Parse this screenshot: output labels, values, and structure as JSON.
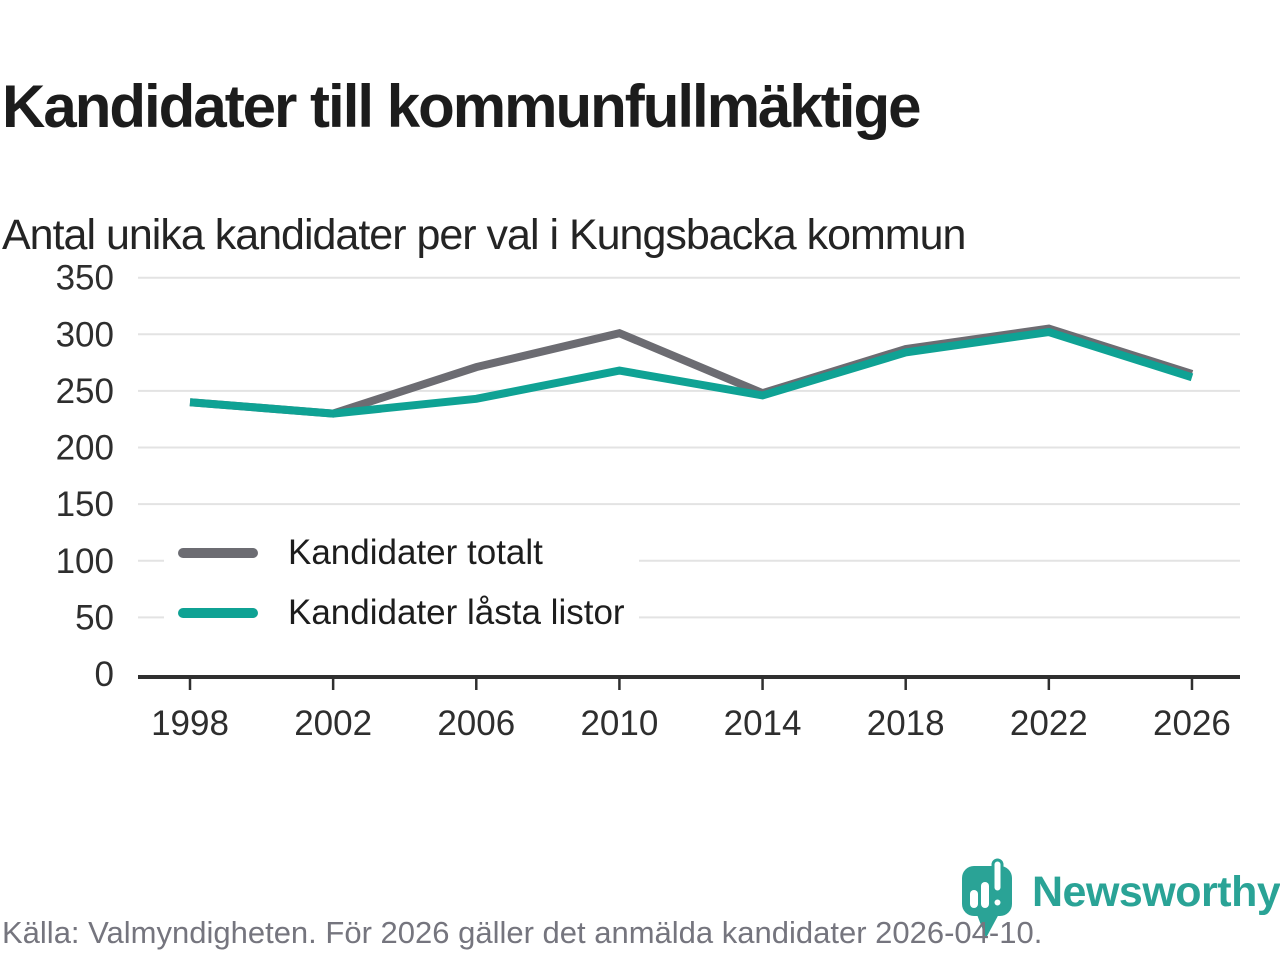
{
  "page": {
    "title": "Kandidater till kommunfullmäktige",
    "subtitle": "Antal unika kandidater per val i Kungsbacka kommun"
  },
  "chart_data": {
    "type": "line",
    "title": "Kandidater till kommunfullmäktige",
    "subtitle": "Antal unika kandidater per val i Kungsbacka kommun",
    "categories": [
      "1998",
      "2002",
      "2006",
      "2010",
      "2014",
      "2018",
      "2022",
      "2026"
    ],
    "series": [
      {
        "name": "Kandidater totalt",
        "color": "#6C6C72",
        "values": [
          240,
          230,
          271,
          301,
          248,
          287,
          305,
          265
        ]
      },
      {
        "name": "Kandidater låsta listor",
        "color": "#0FA294",
        "values": [
          240,
          230,
          243,
          268,
          246,
          284,
          302,
          262
        ]
      }
    ],
    "xlabel": "",
    "ylabel": "",
    "ylim": [
      0,
      350
    ],
    "ytick_step": 50,
    "yticks": [
      0,
      50,
      100,
      150,
      200,
      250,
      300,
      350
    ],
    "grid": true,
    "legend_position": "inside-left-middle",
    "grid_color": "#e3e3e3",
    "axis_color": "#2f2f2f",
    "tick_label_color": "#2e2e2e"
  },
  "footer": {
    "source": "Källa: Valmyndigheten. För 2026 gäller det anmälda kandidater 2026-04-10.",
    "brand": "Newsworthy",
    "brand_color": "#2AA396"
  }
}
